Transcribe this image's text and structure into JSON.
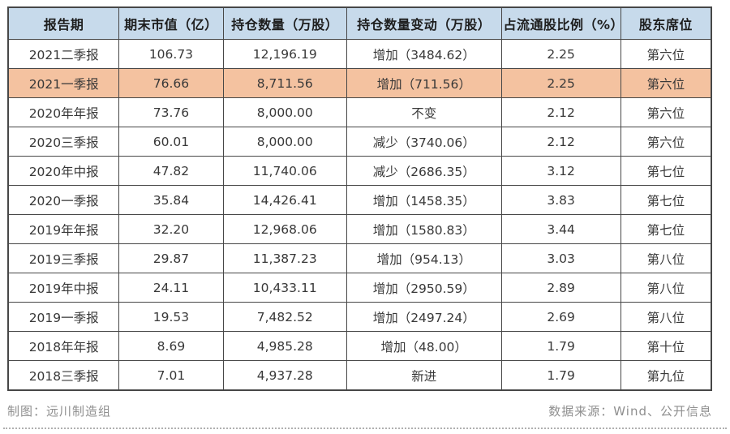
{
  "chart_data": {
    "type": "table",
    "columns": [
      "报告期",
      "期末市值（亿）",
      "持仓数量（万股）",
      "持仓数量变动（万股）",
      "占流通股比例（%）",
      "股东席位"
    ],
    "rows": [
      [
        "2021二季报",
        "106.73",
        "12,196.19",
        "增加（3484.62）",
        "2.25",
        "第六位"
      ],
      [
        "2021一季报",
        "76.66",
        "8,711.56",
        "增加（711.56）",
        "2.25",
        "第六位"
      ],
      [
        "2020年年报",
        "73.76",
        "8,000.00",
        "不变",
        "2.12",
        "第六位"
      ],
      [
        "2020三季报",
        "60.01",
        "8,000.00",
        "减少（3740.06）",
        "2.12",
        "第六位"
      ],
      [
        "2020年中报",
        "47.82",
        "11,740.06",
        "减少（2686.35）",
        "3.12",
        "第七位"
      ],
      [
        "2020一季报",
        "35.84",
        "14,426.41",
        "增加（1458.35）",
        "3.83",
        "第七位"
      ],
      [
        "2019年年报",
        "32.20",
        "12,968.06",
        "增加（1580.83）",
        "3.44",
        "第七位"
      ],
      [
        "2019三季报",
        "29.87",
        "11,387.23",
        "增加（954.13）",
        "3.03",
        "第八位"
      ],
      [
        "2019年中报",
        "24.11",
        "10,433.11",
        "增加（2950.59）",
        "2.89",
        "第八位"
      ],
      [
        "2019一季报",
        "19.53",
        "7,482.52",
        "增加（2497.24）",
        "2.69",
        "第八位"
      ],
      [
        "2018年年报",
        "8.69",
        "4,985.28",
        "增加（48.00）",
        "1.79",
        "第十位"
      ],
      [
        "2018三季报",
        "7.01",
        "4,937.28",
        "新进",
        "1.79",
        "第九位"
      ]
    ],
    "highlighted_row_index": 1,
    "layout": {
      "column_width_percents": [
        15.8,
        14.8,
        17.6,
        22.0,
        17.0,
        12.9
      ]
    }
  },
  "footer": {
    "left": "制图：远川制造组",
    "right": "数据来源：Wind、公开信息"
  },
  "colors": {
    "header_bg": "#c7daeb",
    "highlight_bg": "#f4c2a0",
    "border": "#474747",
    "cell_text": "#383838",
    "footer_text": "#8f8f8f"
  }
}
